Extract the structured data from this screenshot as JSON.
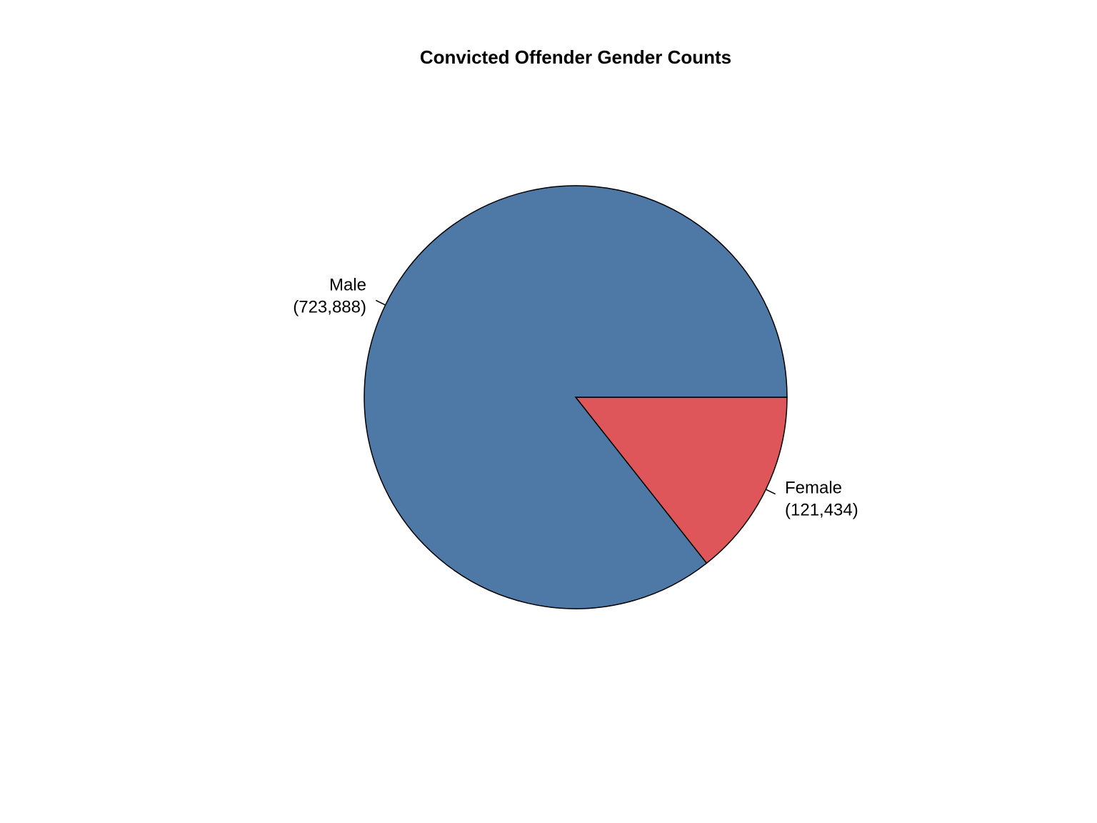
{
  "chart_data": {
    "type": "pie",
    "title": "Convicted Offender Gender Counts",
    "slices": [
      {
        "label": "Female",
        "value": 121434,
        "value_label": "(121,434)",
        "color": "#df565a"
      },
      {
        "label": "Male",
        "value": 723888,
        "value_label": "(723,888)",
        "color": "#4e78a5"
      }
    ],
    "start_angle": "3 o'clock",
    "direction": "clockwise",
    "outline_color": "#000000"
  }
}
